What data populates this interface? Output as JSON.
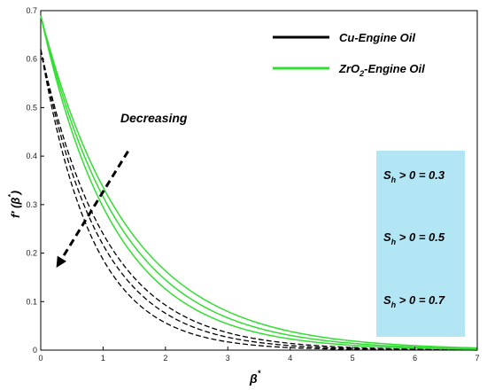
{
  "chart_data": {
    "type": "line",
    "xlabel": "β",
    "xlabel_sup": "*",
    "ylabel_parts": {
      "f": "f",
      "prime": "′",
      "open": " (",
      "beta": "β",
      "star": "*",
      "close": ")"
    },
    "xlim": [
      0,
      7
    ],
    "ylim": [
      0,
      0.7
    ],
    "x_ticks": [
      "0",
      "1",
      "2",
      "3",
      "4",
      "5",
      "6",
      "7"
    ],
    "y_ticks": [
      "0",
      "0.1",
      "0.2",
      "0.3",
      "0.4",
      "0.5",
      "0.6",
      "0.7"
    ],
    "grid": false,
    "legend": [
      {
        "text": "Cu-Engine Oil",
        "color": "#000000"
      },
      {
        "text_main": "ZrO",
        "text_sub": "2",
        "text_rest": "-Engine Oil",
        "color": "#33dd33"
      }
    ],
    "series": [
      {
        "group": "Cu-Engine Oil",
        "dashed": true,
        "color": "#000000",
        "f0": 0.62,
        "k": 0.95
      },
      {
        "group": "Cu-Engine Oil",
        "dashed": true,
        "color": "#000000",
        "f0": 0.62,
        "k": 1.05
      },
      {
        "group": "Cu-Engine Oil",
        "dashed": true,
        "color": "#000000",
        "f0": 0.62,
        "k": 1.2
      },
      {
        "group": "ZrO2-Engine Oil",
        "dashed": false,
        "color": "#33dd33",
        "f0": 0.69,
        "k": 0.72
      },
      {
        "group": "ZrO2-Engine Oil",
        "dashed": false,
        "color": "#33dd33",
        "f0": 0.69,
        "k": 0.78
      },
      {
        "group": "ZrO2-Engine Oil",
        "dashed": false,
        "color": "#33dd33",
        "f0": 0.69,
        "k": 0.85
      }
    ],
    "annotation": {
      "text": "Decreasing",
      "arrow_from": [
        1.4,
        0.41
      ],
      "arrow_to": [
        0.25,
        0.17
      ]
    },
    "info_box": {
      "color": "#b3e6f5",
      "items": [
        {
          "s": "S",
          "sub": "h",
          "rest": " > 0 = 0.3"
        },
        {
          "s": "S",
          "sub": "h",
          "rest": " > 0  = 0.5"
        },
        {
          "s": "S",
          "sub": "h",
          "rest": " > 0  = 0.7"
        }
      ]
    }
  }
}
